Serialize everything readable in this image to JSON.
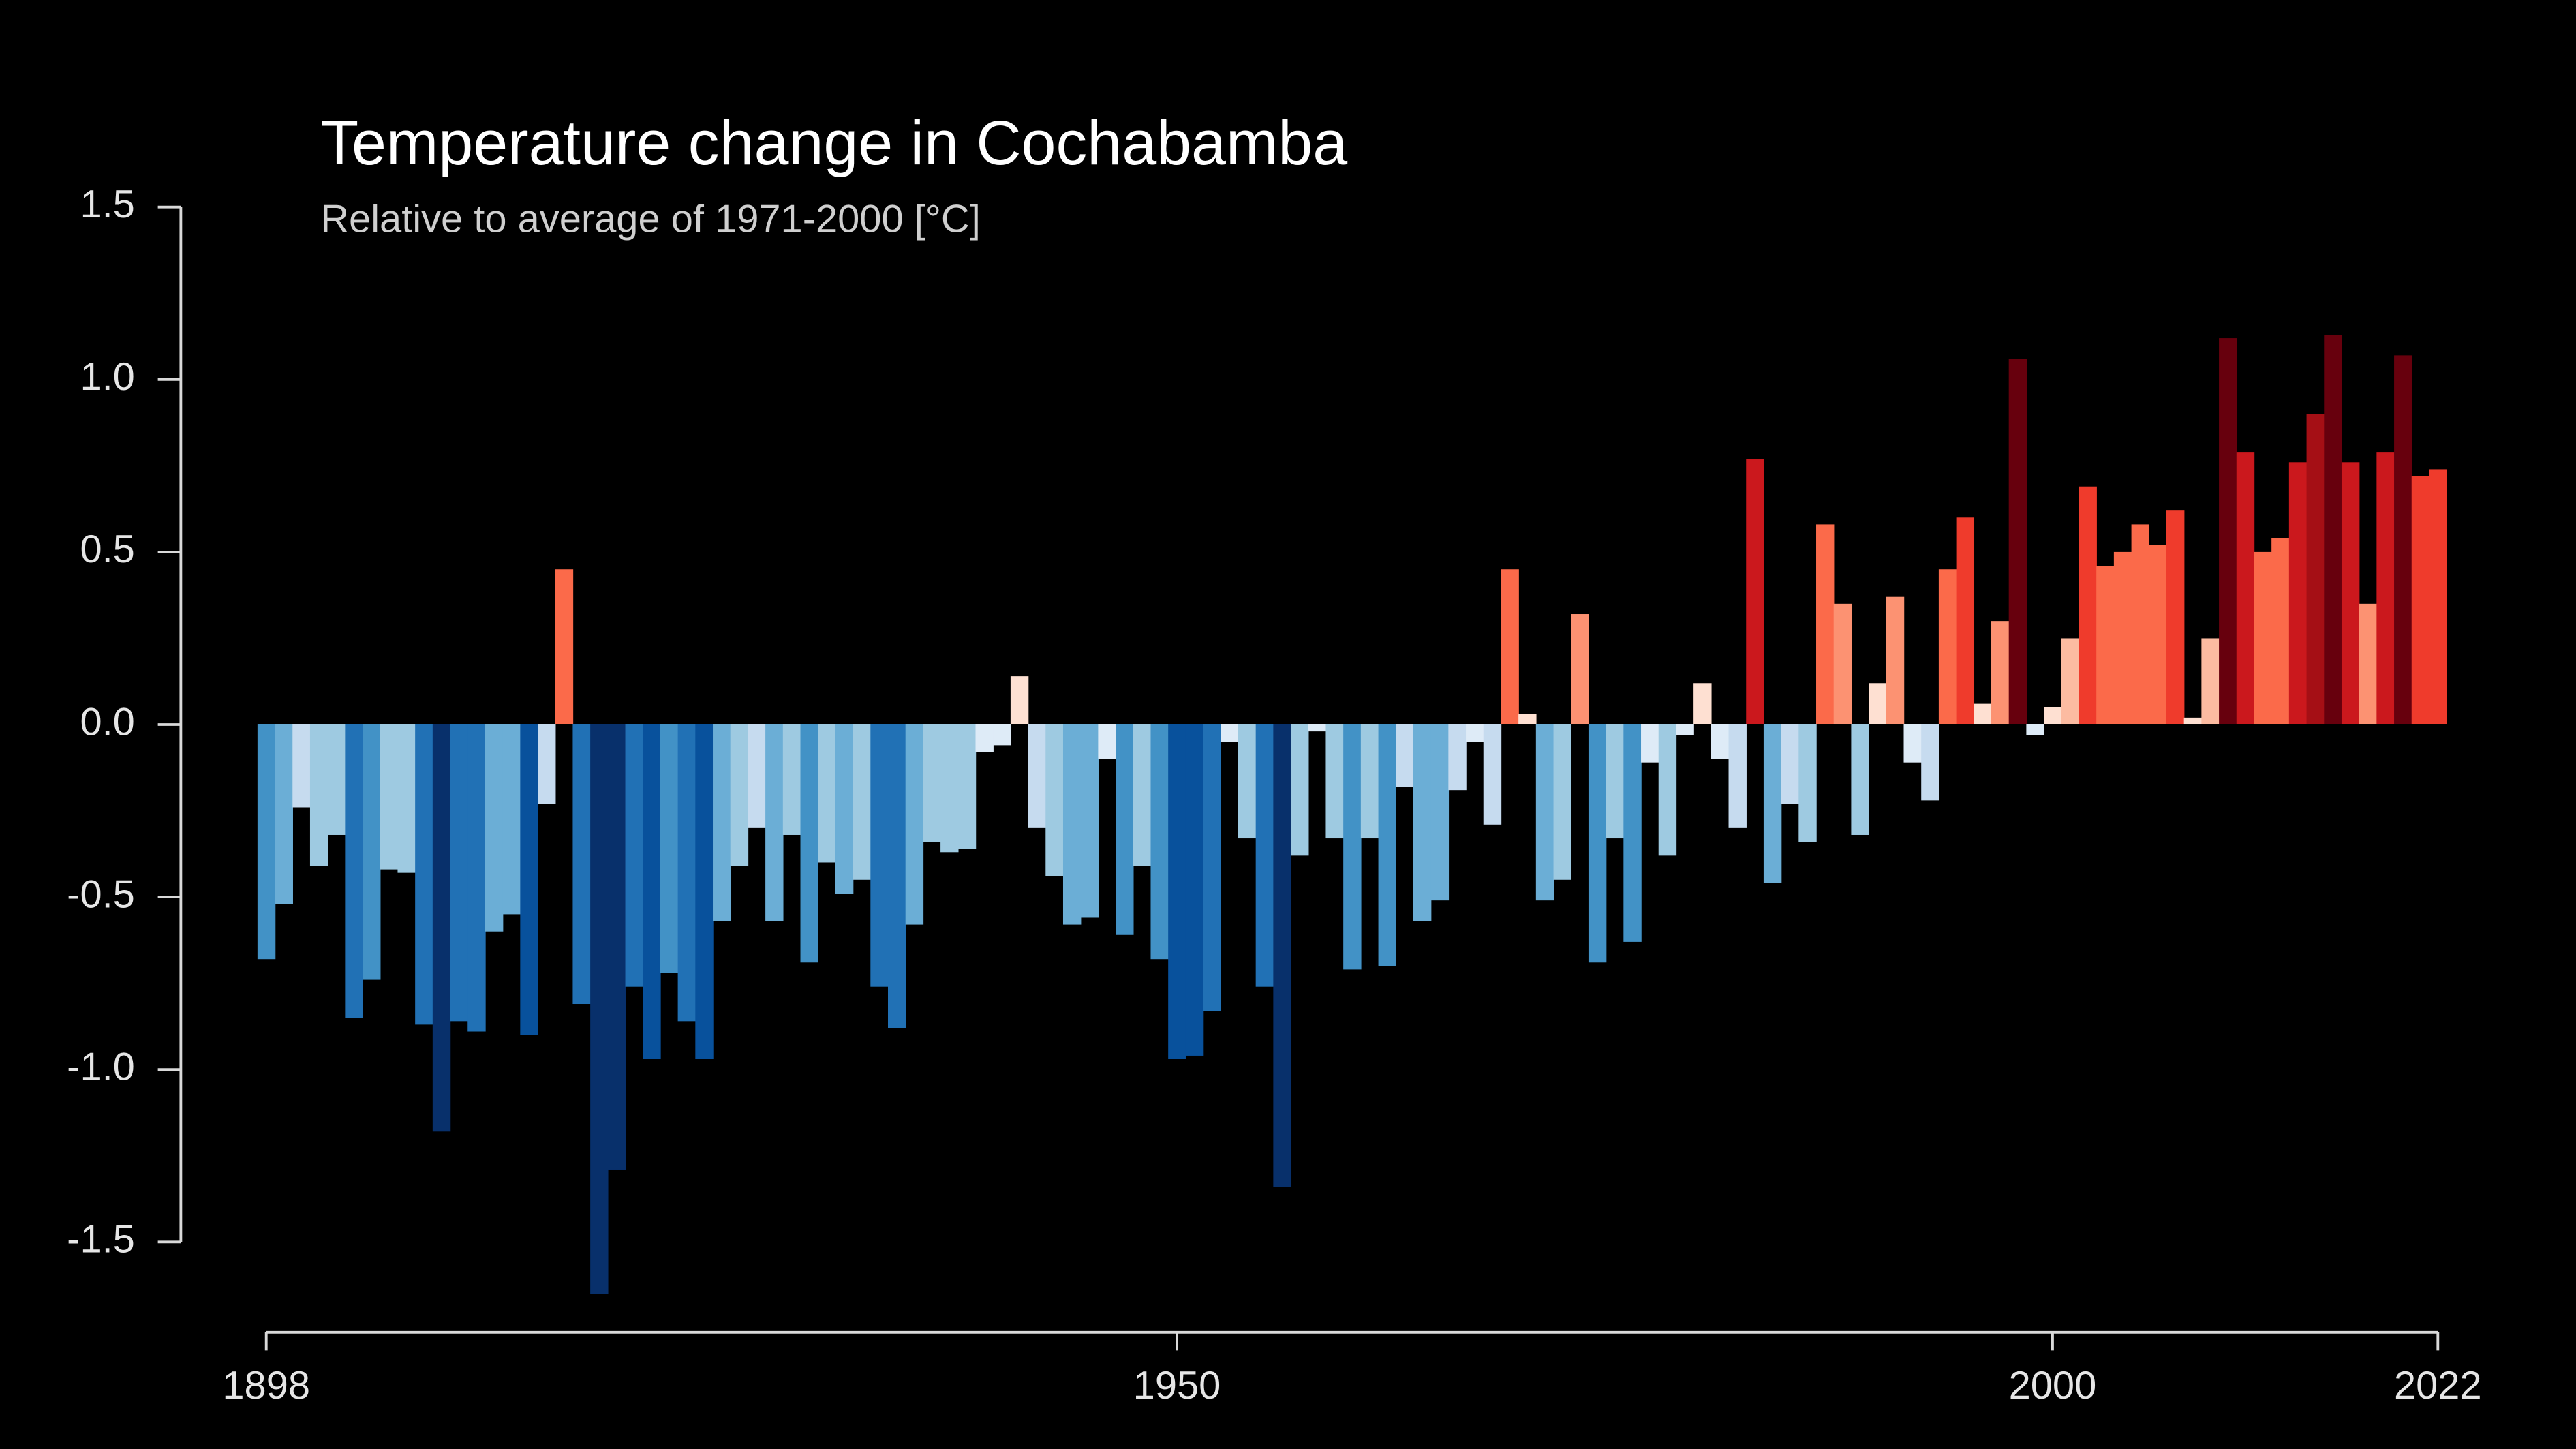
{
  "chart_data": {
    "type": "bar",
    "title": "Temperature change in Cochabamba",
    "subtitle": "Relative to average of 1971-2000  [°C]",
    "x": [
      1898,
      1899,
      1900,
      1901,
      1902,
      1903,
      1904,
      1905,
      1906,
      1907,
      1908,
      1909,
      1910,
      1911,
      1912,
      1913,
      1914,
      1915,
      1916,
      1917,
      1918,
      1919,
      1920,
      1921,
      1922,
      1923,
      1924,
      1925,
      1926,
      1927,
      1928,
      1929,
      1930,
      1931,
      1932,
      1933,
      1934,
      1935,
      1936,
      1937,
      1938,
      1939,
      1940,
      1941,
      1942,
      1943,
      1944,
      1945,
      1946,
      1947,
      1948,
      1949,
      1950,
      1951,
      1952,
      1953,
      1954,
      1955,
      1956,
      1957,
      1958,
      1959,
      1960,
      1961,
      1962,
      1963,
      1964,
      1965,
      1966,
      1967,
      1968,
      1969,
      1970,
      1971,
      1972,
      1973,
      1974,
      1975,
      1976,
      1977,
      1978,
      1979,
      1980,
      1981,
      1982,
      1983,
      1984,
      1985,
      1986,
      1987,
      1988,
      1989,
      1990,
      1991,
      1992,
      1993,
      1994,
      1995,
      1996,
      1997,
      1998,
      1999,
      2000,
      2001,
      2002,
      2003,
      2004,
      2005,
      2006,
      2007,
      2008,
      2009,
      2010,
      2011,
      2012,
      2013,
      2014,
      2015,
      2016,
      2017,
      2018,
      2019,
      2020,
      2021,
      2022
    ],
    "values": [
      -0.68,
      -0.52,
      -0.24,
      -0.41,
      -0.32,
      -0.85,
      -0.74,
      -0.42,
      -0.43,
      -0.87,
      -1.18,
      -0.86,
      -0.89,
      -0.6,
      -0.55,
      -0.9,
      -0.23,
      0.45,
      -0.81,
      -1.65,
      -1.29,
      -0.76,
      -0.97,
      -0.72,
      -0.86,
      -0.97,
      -0.57,
      -0.41,
      -0.3,
      -0.57,
      -0.32,
      -0.69,
      -0.4,
      -0.49,
      -0.45,
      -0.76,
      -0.88,
      -0.58,
      -0.34,
      -0.37,
      -0.36,
      -0.08,
      -0.06,
      0.14,
      -0.3,
      -0.44,
      -0.58,
      -0.56,
      -0.1,
      -0.61,
      -0.41,
      -0.68,
      -0.97,
      -0.96,
      -0.83,
      -0.05,
      -0.33,
      -0.76,
      -1.34,
      -0.38,
      -0.02,
      -0.33,
      -0.71,
      -0.33,
      -0.7,
      -0.18,
      -0.57,
      -0.51,
      -0.19,
      -0.05,
      -0.29,
      0.45,
      0.03,
      -0.51,
      -0.45,
      0.32,
      -0.69,
      -0.33,
      -0.63,
      -0.11,
      -0.38,
      -0.03,
      0.12,
      -0.1,
      -0.3,
      0.77,
      -0.46,
      -0.23,
      -0.34,
      0.58,
      0.35,
      -0.32,
      0.12,
      0.37,
      -0.11,
      -0.22,
      0.45,
      0.6,
      0.06,
      0.3,
      1.06,
      -0.03,
      0.05,
      0.25,
      0.69,
      0.46,
      0.5,
      0.58,
      0.52,
      0.62,
      0.02,
      0.25,
      1.12,
      0.79,
      0.5,
      0.54,
      0.76,
      0.9,
      1.13,
      0.76,
      0.35,
      0.79,
      1.07,
      0.72,
      0.74
    ],
    "color_scale": {
      "min": -1.2,
      "max": 1.2,
      "colors": [
        "#08306b",
        "#08519c",
        "#2171b5",
        "#4292c6",
        "#6baed6",
        "#9ecae1",
        "#c6dbef",
        "#deebf7",
        "#fee0d2",
        "#fcbba1",
        "#fc9272",
        "#fb6a4a",
        "#ef3b2c",
        "#cb181d",
        "#a50f15",
        "#67000d"
      ]
    },
    "xlim": [
      1898,
      2022
    ],
    "xticks": [
      1898,
      1950,
      2000,
      2022
    ],
    "ylim": [
      -1.5,
      1.5
    ],
    "yticks": [
      1.5,
      {
        "value": 1.0,
        "label": "1.0"
      },
      0.5,
      {
        "value": 0,
        "label": "0.0"
      },
      -0.5,
      {
        "value": -1.0,
        "label": "-1.0"
      },
      -1.5
    ],
    "grid": false
  }
}
